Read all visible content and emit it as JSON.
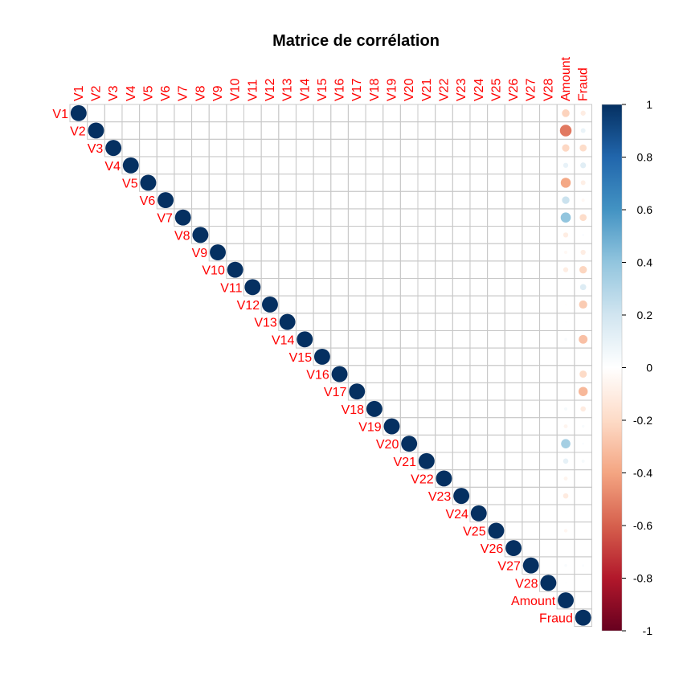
{
  "chart_data": {
    "type": "heatmap",
    "subtype": "correlation-matrix-upper-circles",
    "title": "Matrice de corrélation",
    "variables": [
      "V1",
      "V2",
      "V3",
      "V4",
      "V5",
      "V6",
      "V7",
      "V8",
      "V9",
      "V10",
      "V11",
      "V12",
      "V13",
      "V14",
      "V15",
      "V16",
      "V17",
      "V18",
      "V19",
      "V20",
      "V21",
      "V22",
      "V23",
      "V24",
      "V25",
      "V26",
      "V27",
      "V28",
      "Amount",
      "Fraud"
    ],
    "diagonal_value": 1,
    "amount_correlations": [
      -0.23,
      -0.53,
      -0.21,
      0.1,
      -0.39,
      0.22,
      0.4,
      -0.1,
      -0.04,
      -0.1,
      0.0,
      -0.01,
      0.01,
      0.03,
      -0.003,
      -0.004,
      0.007,
      0.04,
      -0.06,
      0.34,
      0.11,
      -0.06,
      -0.11,
      0.005,
      -0.05,
      -0.003,
      0.03,
      0.01
    ],
    "fraud_correlations": [
      -0.1,
      0.09,
      -0.19,
      0.13,
      -0.09,
      -0.04,
      -0.19,
      0.02,
      -0.1,
      -0.22,
      0.15,
      -0.26,
      -0.005,
      -0.3,
      -0.004,
      -0.2,
      -0.33,
      -0.11,
      0.03,
      0.02,
      0.04,
      0.001,
      -0.003,
      -0.007,
      0.003,
      0.004,
      0.02,
      0.01
    ],
    "amount_fraud_correlation": 0.006,
    "colorbar": {
      "range": [
        -1,
        1
      ],
      "ticks": [
        "1",
        "0.8",
        "0.6",
        "0.4",
        "0.2",
        "0",
        "-0.2",
        "-0.4",
        "-0.6",
        "-0.8",
        "-1"
      ],
      "colors": [
        "#67001F",
        "#B2182B",
        "#D6604D",
        "#F4A582",
        "#FDDBC7",
        "#FFFFFF",
        "#D1E5F0",
        "#92C5DE",
        "#4393C3",
        "#2166AC",
        "#053061"
      ]
    },
    "label_color": "#FF0000",
    "grid": true
  }
}
